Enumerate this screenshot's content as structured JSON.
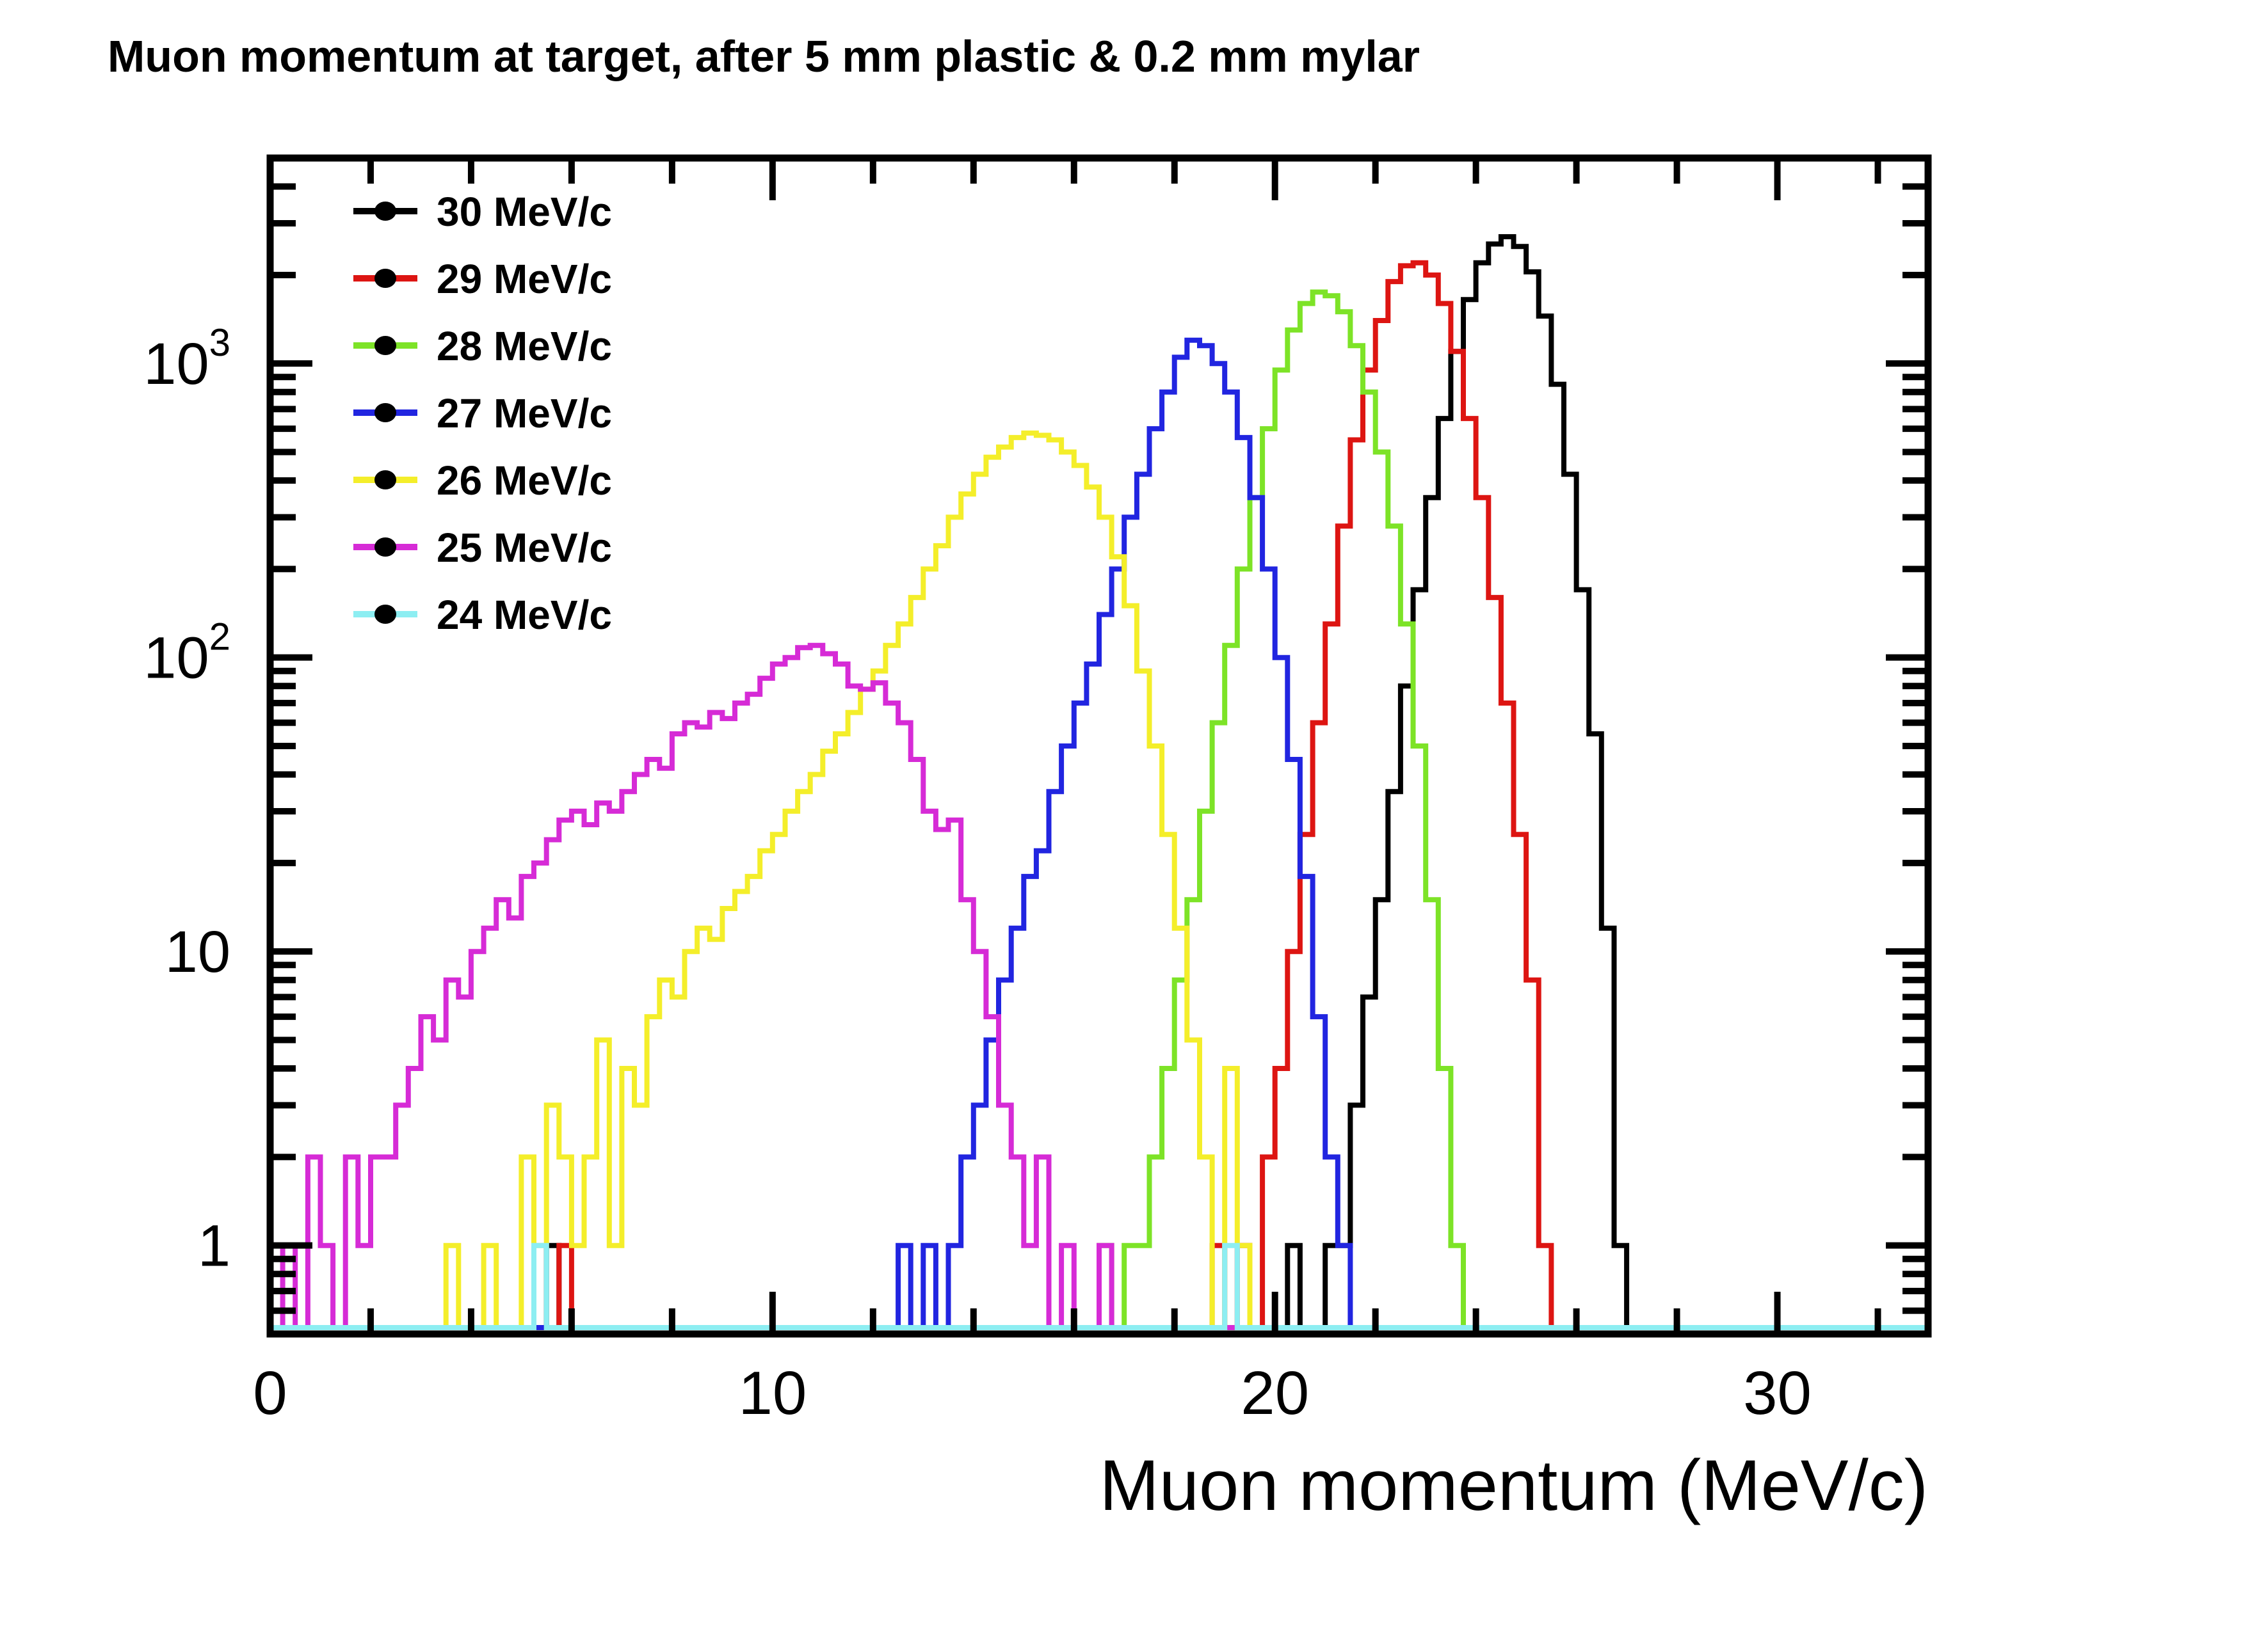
{
  "title": "Muon momentum at target, after 5 mm plastic & 0.2 mm mylar",
  "legend": {
    "items": [
      {
        "label": "30 MeV/c",
        "color": "#000000"
      },
      {
        "label": "29 MeV/c",
        "color": "#dd1512"
      },
      {
        "label": "28 MeV/c",
        "color": "#7de327"
      },
      {
        "label": "27 MeV/c",
        "color": "#2125e0"
      },
      {
        "label": "26 MeV/c",
        "color": "#f4ee2a"
      },
      {
        "label": "25 MeV/c",
        "color": "#d62bd6"
      },
      {
        "label": "24 MeV/c",
        "color": "#8deef2"
      }
    ],
    "marker_color": "#000000"
  },
  "axes": {
    "x_major_ticks": [
      0,
      10,
      20,
      30
    ],
    "x_major_labels": [
      "0",
      "10",
      "20",
      "30"
    ],
    "x_minor_step": 2,
    "y_major_ticks": [
      1,
      10,
      100,
      1000
    ],
    "y_major_labels": [
      {
        "base": "1",
        "exp": ""
      },
      {
        "base": "10",
        "exp": ""
      },
      {
        "base": "10",
        "exp": "2"
      },
      {
        "base": "10",
        "exp": "3"
      }
    ]
  },
  "chart_data": {
    "type": "histogram",
    "title": "Muon momentum at target, after 5 mm plastic & 0.2 mm mylar",
    "xlabel": "Muon momentum (MeV/c)",
    "ylabel": "",
    "x_range": [
      0,
      33
    ],
    "y_range": [
      0.5,
      5000
    ],
    "y_scale": "log",
    "grid": false,
    "legend_position": "top-left",
    "bin_width": 0.25,
    "series": [
      {
        "name": "30 MeV/c",
        "color": "#000000",
        "peak_x": 24.5,
        "peak_y": 2700,
        "segments": [
          {
            "x_start": 5.5,
            "values": [
              1
            ]
          },
          {
            "x_start": 20.25,
            "values": [
              1,
              0,
              0,
              1,
              1,
              3,
              7,
              15,
              35,
              80,
              170,
              350,
              650,
              1100,
              1650,
              2200,
              2550,
              2700,
              2500,
              2050,
              1450,
              850,
              420,
              170,
              55,
              12,
              1
            ]
          }
        ]
      },
      {
        "name": "29 MeV/c",
        "color": "#dd1512",
        "peak_x": 22.7,
        "peak_y": 2200,
        "segments": [
          {
            "x_start": 5.75,
            "values": [
              1
            ]
          },
          {
            "x_start": 18.75,
            "values": [
              1,
              0,
              1,
              0,
              2,
              4,
              10,
              25,
              60,
              130,
              280,
              550,
              950,
              1400,
              1900,
              2150,
              2200,
              2000,
              1600,
              1100,
              650,
              350,
              160,
              70,
              25,
              8,
              1
            ]
          }
        ]
      },
      {
        "name": "28 MeV/c",
        "color": "#7de327",
        "peak_x": 20.7,
        "peak_y": 1750,
        "segments": [
          {
            "x_start": 16.5,
            "values": [
              1,
              0,
              1,
              1,
              2,
              4,
              8,
              15,
              30,
              60,
              110,
              200,
              350,
              600,
              950,
              1300,
              1600,
              1750,
              1700,
              1500,
              1150,
              800,
              500,
              280,
              130,
              50,
              15,
              4,
              1
            ]
          }
        ]
      },
      {
        "name": "27 MeV/c",
        "color": "#2125e0",
        "peak_x": 18.2,
        "peak_y": 1200,
        "segments": [
          {
            "x_start": 12.5,
            "values": [
              1,
              0,
              1,
              0,
              1,
              2,
              3,
              5,
              8,
              12,
              18,
              22,
              35,
              50,
              70,
              95,
              140,
              200,
              300,
              420,
              600,
              800,
              1050,
              1200,
              1150,
              1000,
              800,
              560,
              350,
              200,
              100,
              45,
              18,
              6,
              2,
              1
            ]
          }
        ]
      },
      {
        "name": "26 MeV/c",
        "color": "#f4ee2a",
        "peak_x": 15.0,
        "peak_y": 580,
        "segments": [
          {
            "x_start": 3.5,
            "values": [
              1,
              0,
              0,
              1,
              0,
              0,
              2,
              1,
              3,
              2,
              1,
              2,
              5,
              1,
              4,
              3,
              6,
              8,
              7,
              10,
              12,
              11,
              14,
              16,
              18,
              22,
              25,
              30,
              35,
              40,
              48,
              55,
              65,
              78,
              90,
              110,
              130,
              160,
              200,
              240,
              300,
              360,
              420,
              480,
              520,
              560,
              580,
              570,
              550,
              500,
              450,
              380,
              300,
              220,
              150,
              90,
              50,
              25,
              12,
              5,
              2,
              0,
              4,
              1
            ]
          }
        ]
      },
      {
        "name": "25 MeV/c",
        "color": "#d62bd6",
        "peak_x": 10.6,
        "peak_y": 110,
        "segments": [
          {
            "x_start": 0.25,
            "values": [
              1,
              0,
              2,
              1,
              0,
              2,
              1,
              2,
              2,
              3,
              4,
              6,
              5,
              8,
              7,
              10,
              12,
              15,
              13,
              18,
              20,
              24,
              28,
              30,
              27,
              32,
              30,
              35,
              40,
              45,
              42,
              55,
              60,
              58,
              65,
              62,
              70,
              75,
              85,
              95,
              100,
              108,
              110,
              103,
              95,
              80,
              78,
              82,
              70,
              60,
              45,
              30,
              26,
              28,
              15,
              10,
              6,
              3,
              2,
              1,
              2,
              0,
              1,
              0,
              0,
              1
            ]
          }
        ]
      },
      {
        "name": "24 MeV/c",
        "color": "#8deef2",
        "peak_x": 5.25,
        "peak_y": 1,
        "segments": [
          {
            "x_start": 5.25,
            "values": [
              1
            ]
          },
          {
            "x_start": 19.0,
            "values": [
              1
            ]
          }
        ]
      }
    ]
  }
}
